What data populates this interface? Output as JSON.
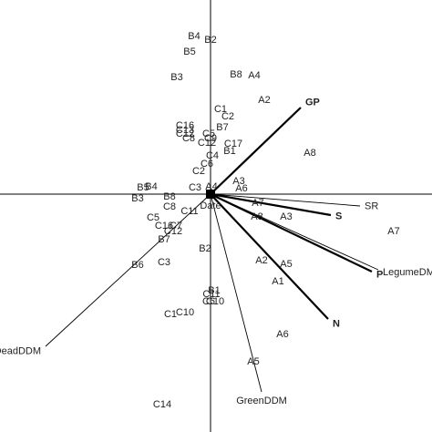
{
  "chart_data": {
    "type": "biplot",
    "xlim": [
      -2.31,
      2.43
    ],
    "ylim": [
      -2.61,
      2.13
    ],
    "points": {
      "labels": [
        "B4",
        "B2",
        "B5",
        "B3",
        "B8",
        "A4",
        "A2",
        "C1",
        "C2",
        "B7",
        "C16",
        "C13",
        "C12",
        "C8",
        "C5",
        "C9",
        "C12",
        "C17",
        "B1",
        "C4",
        "C6",
        "C2",
        "A8",
        "A3",
        "A6",
        "C3",
        "A4",
        "B5",
        "B4",
        "B3",
        "B8",
        "C8",
        "C11",
        "C5",
        "C16",
        "C7",
        "C12",
        "B7",
        "A7",
        "A8",
        "A3",
        "A7",
        "B2",
        "A2",
        "A5",
        "B6",
        "C3",
        "A1",
        "C11",
        "C6",
        "C10",
        "B1",
        "C1",
        "C10",
        "A6",
        "A5",
        "C14"
      ],
      "x": [
        -0.18,
        0.0,
        -0.23,
        -0.37,
        0.28,
        0.48,
        0.59,
        0.11,
        0.19,
        0.13,
        -0.28,
        -0.28,
        -0.28,
        -0.24,
        -0.02,
        0.0,
        -0.04,
        0.25,
        0.21,
        0.02,
        -0.04,
        -0.13,
        1.09,
        0.31,
        0.34,
        -0.17,
        0.01,
        -0.74,
        -0.65,
        -0.8,
        -0.45,
        -0.45,
        -0.23,
        -0.63,
        -0.51,
        -0.38,
        -0.41,
        -0.51,
        0.52,
        0.51,
        0.83,
        2.01,
        -0.06,
        0.56,
        0.83,
        -0.8,
        -0.51,
        0.74,
        0.01,
        -0.02,
        0.05,
        0.04,
        -0.44,
        -0.28,
        0.79,
        0.47,
        -0.53
      ],
      "y": [
        1.73,
        1.69,
        1.56,
        1.28,
        1.31,
        1.3,
        1.03,
        0.93,
        0.85,
        0.73,
        0.75,
        0.7,
        0.66,
        0.61,
        0.66,
        0.61,
        0.56,
        0.55,
        0.47,
        0.42,
        0.33,
        0.25,
        0.45,
        0.14,
        0.06,
        0.07,
        0.08,
        0.07,
        0.08,
        -0.05,
        -0.03,
        -0.14,
        -0.19,
        -0.26,
        -0.35,
        -0.35,
        -0.41,
        -0.5,
        -0.1,
        -0.25,
        -0.25,
        -0.41,
        -0.6,
        -0.73,
        -0.77,
        -0.78,
        -0.75,
        -0.96,
        -1.1,
        -1.18,
        -1.18,
        -1.06,
        -1.32,
        -1.3,
        -1.54,
        -1.84,
        -2.31
      ]
    },
    "vectors": {
      "labels": [
        "GP",
        "SR",
        "S",
        "LegumeDM",
        "P",
        "N",
        "GreenDDM",
        "DeadDDM",
        "Date"
      ],
      "x": [
        0.99,
        1.64,
        1.32,
        1.84,
        1.77,
        1.29,
        0.56,
        -1.81,
        0.0
      ],
      "y": [
        0.95,
        -0.13,
        -0.23,
        -0.83,
        -0.85,
        -1.37,
        -2.17,
        -1.67,
        -0.03
      ],
      "bold": [
        true,
        false,
        true,
        false,
        true,
        true,
        false,
        false,
        false
      ]
    },
    "color": "#000000"
  }
}
